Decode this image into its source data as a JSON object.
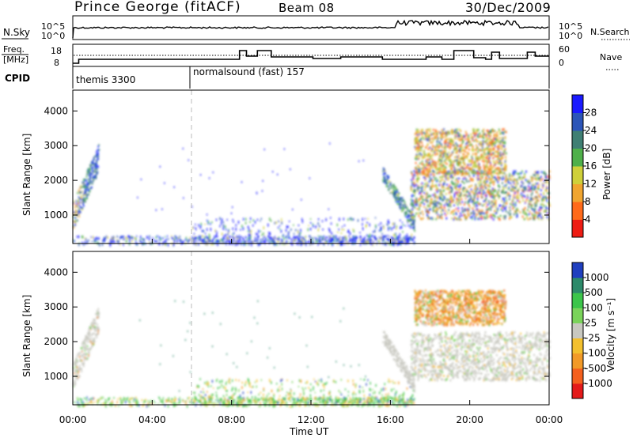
{
  "header": {
    "station": "Prince George (fitACF)",
    "beam": "Beam 08",
    "date": "30/Dec/2009"
  },
  "panels": {
    "nsky": {
      "left_label": "N.Sky",
      "ticks_left": [
        "10^5",
        "10^0"
      ],
      "ticks_right": [
        "10^5",
        "10^0"
      ],
      "right_label": "N.Search"
    },
    "freq": {
      "left_label_1": "Freq.",
      "left_label_2": "[MHz]",
      "ticks_left": [
        "18",
        "8"
      ],
      "ticks_right": [
        "60",
        "0"
      ],
      "right_label": "Nave"
    },
    "cpid": {
      "label": "CPID",
      "modes": [
        {
          "text": "themis 3300"
        },
        {
          "text": "normalsound (fast) 157"
        }
      ]
    }
  },
  "power_panel": {
    "ylabel": "Slant Range [km]",
    "yticks": [
      "1000",
      "2000",
      "3000",
      "4000"
    ],
    "colorbar_label": "Power [dB]",
    "colorbar_ticks": [
      "4",
      "8",
      "12",
      "16",
      "20",
      "24",
      "28"
    ],
    "colorbar_colors": [
      "#1a1aff",
      "#2c55b8",
      "#3f7f73",
      "#4fb04a",
      "#cfd03a",
      "#f0a530",
      "#ff6a1a",
      "#ee1c14"
    ]
  },
  "velocity_panel": {
    "ylabel": "Slant Range [km]",
    "yticks": [
      "1000",
      "2000",
      "3000",
      "4000"
    ],
    "colorbar_label": "Velocity [m s⁻¹]",
    "colorbar_ticks": [
      "1000",
      "500",
      "100",
      "25",
      "-25",
      "-100",
      "-500",
      "-1000"
    ],
    "colorbar_colors": [
      "#1f3fbf",
      "#2d8a6a",
      "#3cc54a",
      "#7ad35a",
      "#c8c8c0",
      "#f3c02e",
      "#f29a28",
      "#f4601e",
      "#e41a1a"
    ]
  },
  "xaxis": {
    "label": "Time UT",
    "ticks": [
      "00:00",
      "04:00",
      "08:00",
      "12:00",
      "16:00",
      "20:00",
      "00:00"
    ]
  },
  "chart_data": [
    {
      "type": "heatmap",
      "title": "",
      "xlabel": "Time UT",
      "ylabel": "Slant Range [km]",
      "xlim_hours": [
        0,
        24
      ],
      "ylim": [
        180,
        4600
      ],
      "colorbar": "Power [dB]",
      "colorbar_range": [
        0,
        30
      ],
      "regions": [
        {
          "t_start": 0.0,
          "t_end": 1.3,
          "range_min": 900,
          "range_max": 2900,
          "power_db": 10
        },
        {
          "t_start": 6.0,
          "t_end": 16.0,
          "range_min": 180,
          "range_max": 700,
          "power_db": 6
        },
        {
          "t_start": 15.6,
          "t_end": 24.0,
          "range_min": 900,
          "range_max": 2300,
          "power_db": 14
        },
        {
          "t_start": 17.2,
          "t_end": 21.8,
          "range_min": 2200,
          "range_max": 3500,
          "power_db": 18
        }
      ]
    },
    {
      "type": "heatmap",
      "title": "",
      "xlabel": "Time UT",
      "ylabel": "Slant Range [km]",
      "xlim_hours": [
        0,
        24
      ],
      "ylim": [
        180,
        4600
      ],
      "colorbar": "Velocity [m s⁻¹]",
      "colorbar_range": [
        -1000,
        1000
      ],
      "regions": [
        {
          "t_start": 0.0,
          "t_end": 1.3,
          "range_min": 900,
          "range_max": 2800,
          "velocity": 0
        },
        {
          "t_start": 6.0,
          "t_end": 16.0,
          "range_min": 180,
          "range_max": 700,
          "velocity": -50
        },
        {
          "t_start": 15.6,
          "t_end": 24.0,
          "range_min": 900,
          "range_max": 2300,
          "velocity": 0
        },
        {
          "t_start": 17.2,
          "t_end": 21.8,
          "range_min": 2500,
          "range_max": 3500,
          "velocity": -200
        }
      ]
    }
  ]
}
